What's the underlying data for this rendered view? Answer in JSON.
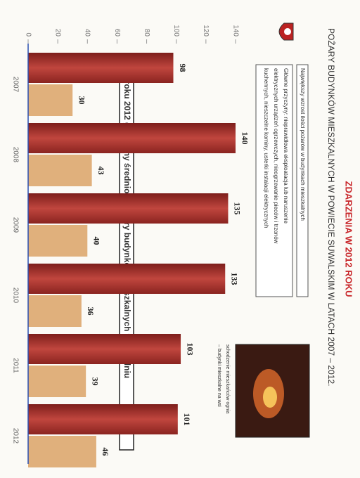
{
  "chart_data": {
    "type": "bar",
    "title": "ZDARZENIA W 2012 ROKU",
    "subtitle": "POŻARY BUDYNKÓW MIESZKALNYCH W POWIECIE SUWALSKIM W LATACH 2007 – 2012.",
    "note_heading": "Największy wzrost ilości pożarów w budynkach mieszkalnych",
    "note_lines": [
      "Główne przyczyny: nieprawidłowa eksploatacja lub naruszenie",
      "elektrycznych urządzeń ogrzewczych, nieogrzewanie pieców i trzonów",
      "kuchennych, nieszczelne kominy, usterki instalacji elektrycznych"
    ],
    "photo_caption": [
      "schodzenie mieszkańców ognia",
      "– budynki mieszkalne na wsi"
    ],
    "annotation": "W roku 2012 gasiliśmy średnio 2 pożary budynków mieszkalnych w tygodniu",
    "categories": [
      "2007",
      "2008",
      "2009",
      "2010",
      "2011",
      "2012"
    ],
    "series": [
      {
        "color": "#a3302b",
        "values": [
          98,
          140,
          135,
          133,
          103,
          101
        ]
      },
      {
        "color": "#e0b07c",
        "values": [
          30,
          43,
          40,
          36,
          39,
          46
        ]
      }
    ],
    "ylim": [
      0,
      140
    ],
    "yticks": [
      0,
      20,
      40,
      60,
      80,
      100,
      120,
      140
    ]
  }
}
